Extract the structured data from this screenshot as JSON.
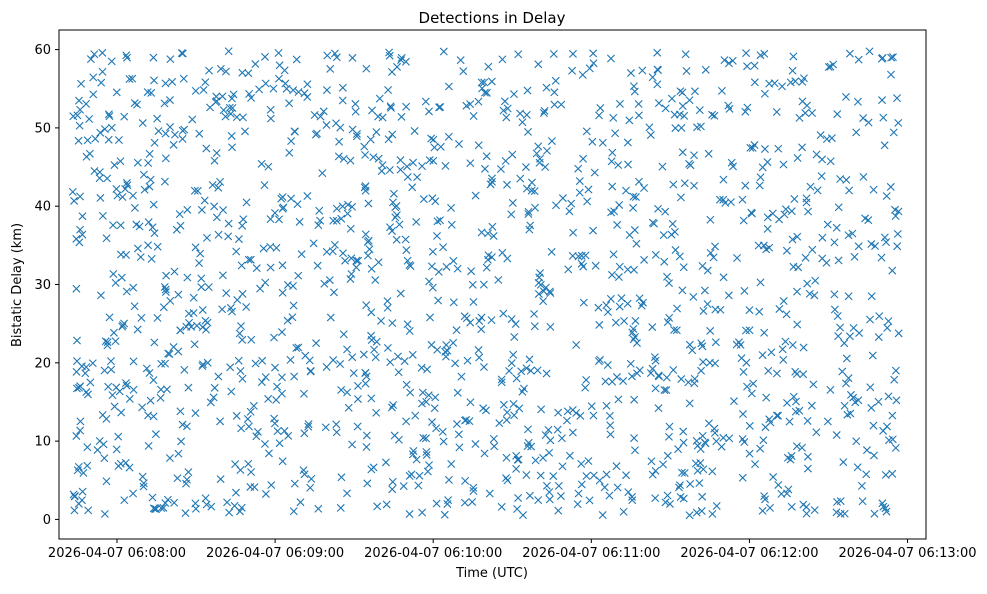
{
  "chart_data": {
    "type": "scatter",
    "title": "Detections in Delay",
    "xlabel": "Time (UTC)",
    "ylabel": "Bistatic Delay (km)",
    "marker": "x",
    "color": "#1f77b4",
    "grid": false,
    "legend": "none",
    "x_tick_labels": [
      "2026-04-07 06:08:00",
      "2026-04-07 06:09:00",
      "2026-04-07 06:10:00",
      "2026-04-07 06:11:00",
      "2026-04-07 06:12:00",
      "2026-04-07 06:13:00"
    ],
    "x_range": [
      "2026-04-07 06:07:38",
      "2026-04-07 06:13:07"
    ],
    "x_data_range": [
      "2026-04-07 06:07:43",
      "2026-04-07 06:12:57"
    ],
    "y_ticks": [
      0,
      10,
      20,
      30,
      40,
      50,
      60
    ],
    "ylim": [
      -2.5,
      62.5
    ],
    "y_data_range": [
      0.5,
      59.8
    ],
    "point_count": 1500,
    "sample_points": [
      {
        "x": "2026-04-07 06:07:44",
        "y": 3.0
      },
      {
        "x": "2026-04-07 06:07:45",
        "y": 51.6
      },
      {
        "x": "2026-04-07 06:07:46",
        "y": 37.0
      },
      {
        "x": "2026-04-07 06:07:58",
        "y": 58.5
      },
      {
        "x": "2026-04-07 06:08:25",
        "y": 59.5
      },
      {
        "x": "2026-04-07 06:08:26",
        "y": 0.8
      },
      {
        "x": "2026-04-07 06:09:35",
        "y": 4.6
      },
      {
        "x": "2026-04-07 06:10:26",
        "y": 1.6
      },
      {
        "x": "2026-04-07 06:11:25",
        "y": 59.6
      },
      {
        "x": "2026-04-07 06:12:05",
        "y": 1.1
      },
      {
        "x": "2026-04-07 06:12:33",
        "y": 0.9
      },
      {
        "x": "2026-04-07 06:12:52",
        "y": 1.0
      },
      {
        "x": "2026-04-07 06:12:56",
        "y": 53.8
      }
    ]
  }
}
